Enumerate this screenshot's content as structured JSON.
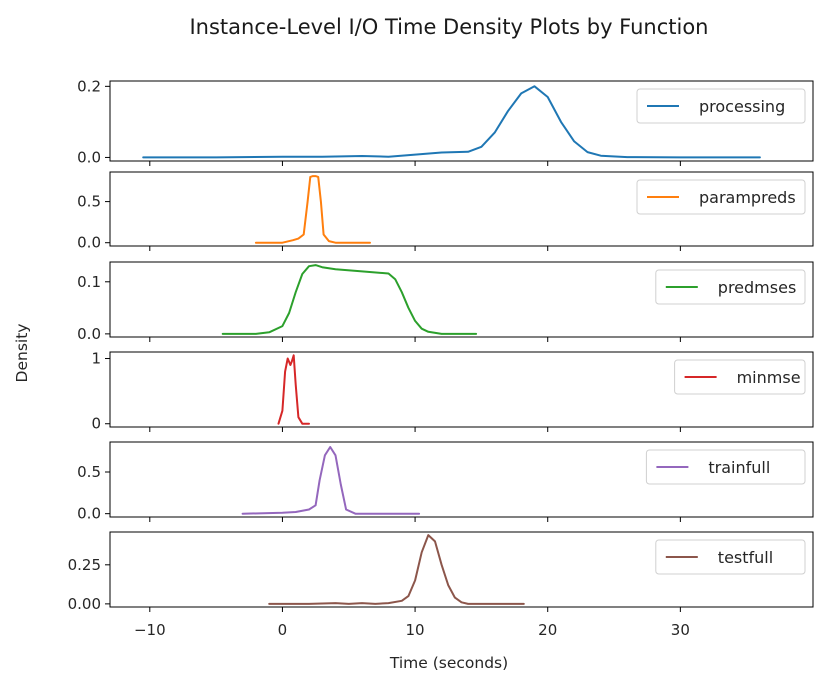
{
  "chart_data": {
    "type": "line",
    "title": "Instance-Level I/O Time Density Plots by Function",
    "xlabel": "Time (seconds)",
    "ylabel": "Density",
    "xlim": [
      -13,
      40
    ],
    "xticks": [
      -10,
      0,
      10,
      20,
      30
    ],
    "xtick_labels": [
      "−10",
      "0",
      "10",
      "20",
      "30"
    ],
    "legend_position": "right",
    "series": [
      {
        "name": "processing",
        "color": "#1f77b4",
        "ylim": [
          -0.01,
          0.215
        ],
        "yticks": [
          0.0,
          0.2
        ],
        "ytick_labels": [
          "0.0",
          "0.2"
        ],
        "x": [
          -10.5,
          -5,
          0,
          3,
          6,
          8,
          10,
          12,
          14,
          15,
          16,
          17,
          18,
          19,
          20,
          21,
          22,
          23,
          24,
          26,
          30,
          36
        ],
        "y": [
          0.0,
          0.0,
          0.002,
          0.002,
          0.004,
          0.002,
          0.008,
          0.014,
          0.016,
          0.03,
          0.07,
          0.13,
          0.18,
          0.2,
          0.17,
          0.1,
          0.045,
          0.015,
          0.005,
          0.001,
          0.0,
          0.0
        ]
      },
      {
        "name": "parampreds",
        "color": "#ff7f0e",
        "ylim": [
          -0.04,
          0.86
        ],
        "yticks": [
          0.0,
          0.5
        ],
        "ytick_labels": [
          "0.0",
          "0.5"
        ],
        "x": [
          -2,
          0,
          0.8,
          1.2,
          1.6,
          1.9,
          2.1,
          2.3,
          2.5,
          2.7,
          2.9,
          3.1,
          3.5,
          4,
          5,
          6.6
        ],
        "y": [
          0.0,
          0.0,
          0.03,
          0.05,
          0.1,
          0.5,
          0.8,
          0.81,
          0.81,
          0.8,
          0.5,
          0.1,
          0.02,
          0.0,
          0.0,
          0.0
        ]
      },
      {
        "name": "predmses",
        "color": "#2ca02c",
        "ylim": [
          -0.006,
          0.138
        ],
        "yticks": [
          0.0,
          0.1
        ],
        "ytick_labels": [
          "0.0",
          "0.1"
        ],
        "x": [
          -4.5,
          -2,
          -1,
          0,
          0.5,
          1,
          1.5,
          2,
          2.5,
          3,
          4,
          6,
          8,
          8.5,
          9,
          9.5,
          10,
          10.5,
          11,
          12,
          13,
          14.6
        ],
        "y": [
          0.0,
          0.0,
          0.003,
          0.015,
          0.04,
          0.08,
          0.115,
          0.13,
          0.132,
          0.128,
          0.124,
          0.12,
          0.116,
          0.105,
          0.08,
          0.05,
          0.025,
          0.01,
          0.004,
          0.0,
          0.0,
          0.0
        ]
      },
      {
        "name": "minmse",
        "color": "#d62728",
        "ylim": [
          -0.05,
          1.1
        ],
        "yticks": [
          0,
          1
        ],
        "ytick_labels": [
          "0",
          "1"
        ],
        "x": [
          -0.3,
          0,
          0.2,
          0.4,
          0.6,
          0.7,
          0.85,
          1.0,
          1.2,
          1.5,
          1.8,
          2.0
        ],
        "y": [
          0.0,
          0.2,
          0.8,
          1.0,
          0.9,
          0.95,
          1.05,
          0.6,
          0.1,
          0.0,
          0.0,
          0.0
        ]
      },
      {
        "name": "trainfull",
        "color": "#9467bd",
        "ylim": [
          -0.04,
          0.86
        ],
        "yticks": [
          0.0,
          0.5
        ],
        "ytick_labels": [
          "0.0",
          "0.5"
        ],
        "x": [
          -3,
          0,
          1,
          2,
          2.5,
          2.8,
          3.2,
          3.6,
          4,
          4.4,
          4.8,
          5.5,
          7,
          10.3
        ],
        "y": [
          0.0,
          0.01,
          0.02,
          0.05,
          0.1,
          0.4,
          0.7,
          0.8,
          0.7,
          0.35,
          0.05,
          0.0,
          0.0,
          0.0
        ]
      },
      {
        "name": "testfull",
        "color": "#8c564b",
        "ylim": [
          -0.02,
          0.46
        ],
        "yticks": [
          0.0,
          0.25
        ],
        "ytick_labels": [
          "0.00",
          "0.25"
        ],
        "x": [
          -1,
          2,
          4,
          5,
          6,
          7,
          8,
          9,
          9.5,
          10,
          10.5,
          11,
          11.5,
          12,
          12.5,
          13,
          13.5,
          14,
          16,
          18.2
        ],
        "y": [
          0.0,
          0.0,
          0.005,
          0.0,
          0.005,
          0.0,
          0.005,
          0.02,
          0.05,
          0.15,
          0.33,
          0.44,
          0.4,
          0.25,
          0.12,
          0.04,
          0.01,
          0.0,
          0.0,
          0.0
        ]
      }
    ]
  }
}
